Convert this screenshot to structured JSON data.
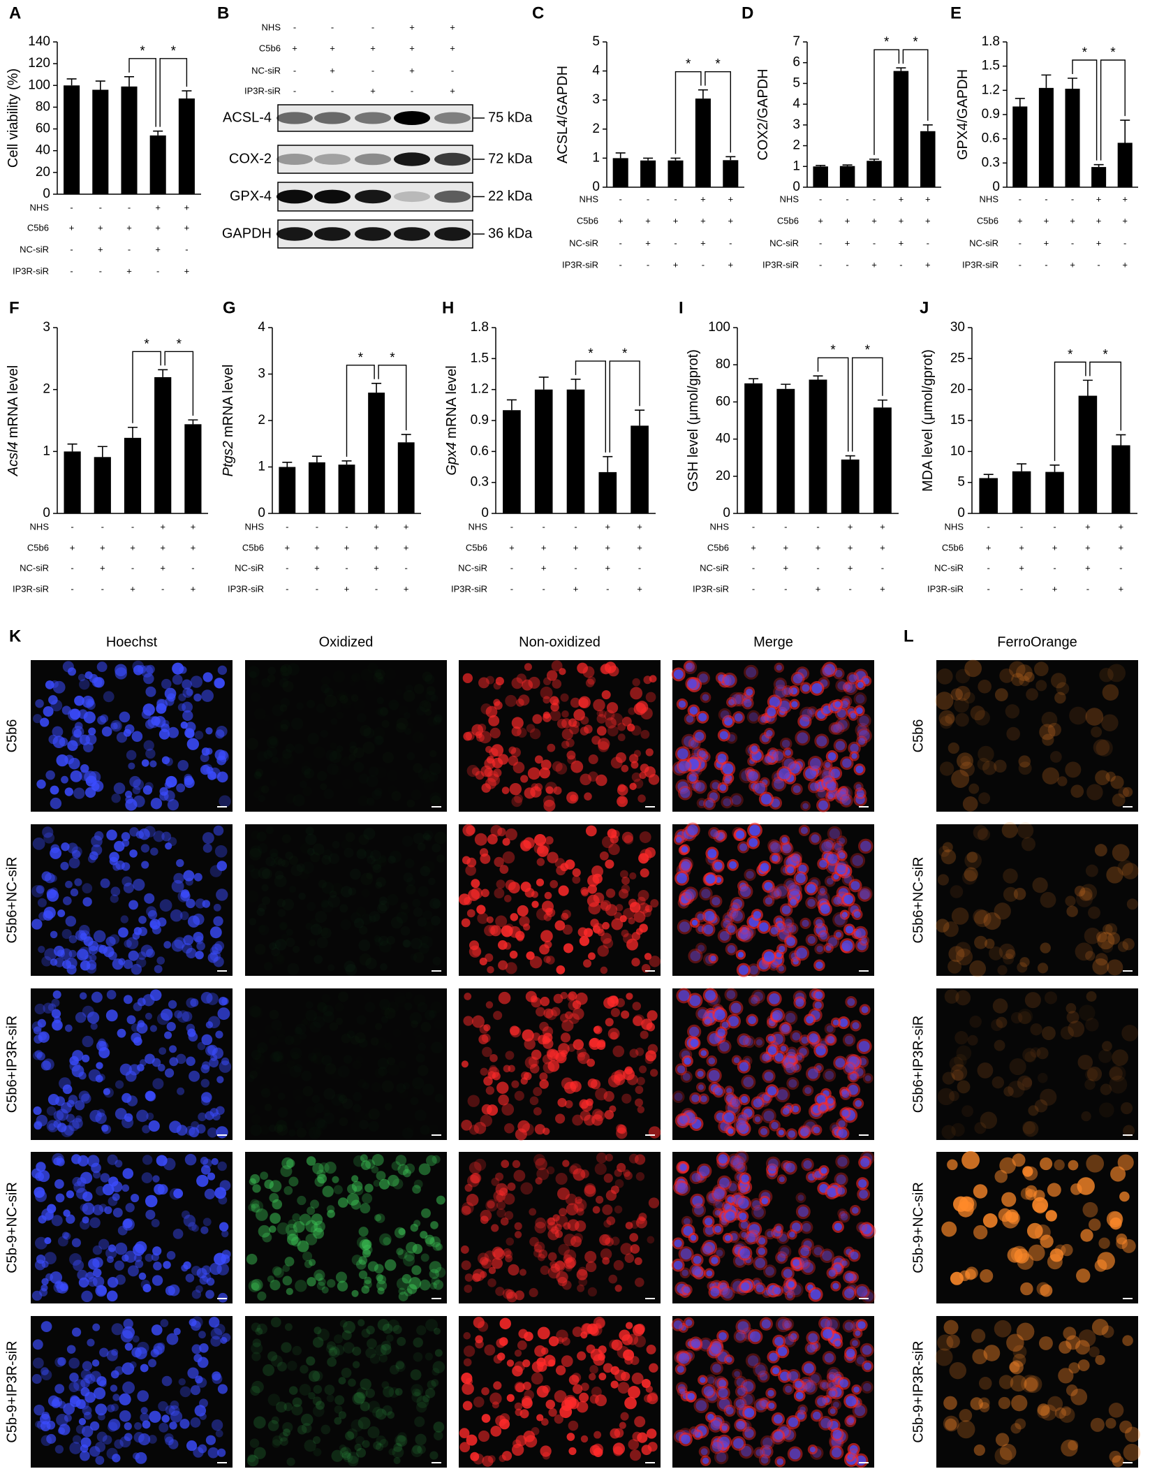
{
  "chart_data": [
    {
      "type": "bar",
      "panel": "A",
      "y_label": [
        {
          "text": "Cell viability (%)"
        }
      ],
      "values": [
        100,
        96,
        99,
        54,
        88
      ],
      "errors": [
        6,
        8,
        9,
        4,
        7
      ],
      "ylim": [
        0,
        140
      ],
      "yticks": [
        0,
        20,
        40,
        60,
        80,
        100,
        120,
        140
      ],
      "annotations": [
        "*",
        "*"
      ],
      "conditions": [
        {
          "name": "NHS",
          "signs": [
            "-",
            "-",
            "-",
            "+",
            "+"
          ]
        },
        {
          "name": "C5b6",
          "signs": [
            "+",
            "+",
            "+",
            "+",
            "+"
          ]
        },
        {
          "name": "NC-siR",
          "signs": [
            "-",
            "+",
            "-",
            "+",
            "-"
          ]
        },
        {
          "name": "IP3R-siR",
          "signs": [
            "-",
            "-",
            "+",
            "-",
            "+"
          ]
        }
      ]
    },
    {
      "type": "bar",
      "panel": "C",
      "y_label": [
        {
          "text": "ACSL4/GAPDH"
        }
      ],
      "values": [
        1.0,
        0.92,
        0.92,
        3.05,
        0.93
      ],
      "errors": [
        0.18,
        0.08,
        0.08,
        0.3,
        0.12
      ],
      "ylim": [
        0,
        5
      ],
      "yticks": [
        0,
        1,
        2,
        3,
        4,
        5
      ],
      "annotations": [
        "*",
        "*"
      ],
      "conditions": [
        {
          "name": "NHS",
          "signs": [
            "-",
            "-",
            "-",
            "+",
            "+"
          ]
        },
        {
          "name": "C5b6",
          "signs": [
            "+",
            "+",
            "+",
            "+",
            "+"
          ]
        },
        {
          "name": "NC-siR",
          "signs": [
            "-",
            "+",
            "-",
            "+",
            "-"
          ]
        },
        {
          "name": "IP3R-siR",
          "signs": [
            "-",
            "-",
            "+",
            "-",
            "+"
          ]
        }
      ]
    },
    {
      "type": "bar",
      "panel": "D",
      "y_label": [
        {
          "text": "COX2/GAPDH"
        }
      ],
      "values": [
        1.0,
        1.02,
        1.27,
        5.6,
        2.7
      ],
      "errors": [
        0.05,
        0.05,
        0.08,
        0.15,
        0.3
      ],
      "ylim": [
        0,
        7
      ],
      "yticks": [
        0,
        1,
        2,
        3,
        4,
        5,
        6,
        7
      ],
      "annotations": [
        "*",
        "*"
      ],
      "conditions": [
        {
          "name": "NHS",
          "signs": [
            "-",
            "-",
            "-",
            "+",
            "+"
          ]
        },
        {
          "name": "C5b6",
          "signs": [
            "+",
            "+",
            "+",
            "+",
            "+"
          ]
        },
        {
          "name": "NC-siR",
          "signs": [
            "-",
            "+",
            "-",
            "+",
            "-"
          ]
        },
        {
          "name": "IP3R-siR",
          "signs": [
            "-",
            "-",
            "+",
            "-",
            "+"
          ]
        }
      ]
    },
    {
      "type": "bar",
      "panel": "E",
      "y_label": [
        {
          "text": "GPX4/GAPDH"
        }
      ],
      "values": [
        1.0,
        1.23,
        1.22,
        0.25,
        0.55
      ],
      "errors": [
        0.1,
        0.16,
        0.13,
        0.03,
        0.28
      ],
      "ylim": [
        0,
        1.8
      ],
      "yticks": [
        0,
        0.3,
        0.6,
        0.9,
        1.2,
        1.5,
        1.8
      ],
      "annotations": [
        "*",
        "*"
      ],
      "conditions": [
        {
          "name": "NHS",
          "signs": [
            "-",
            "-",
            "-",
            "+",
            "+"
          ]
        },
        {
          "name": "C5b6",
          "signs": [
            "+",
            "+",
            "+",
            "+",
            "+"
          ]
        },
        {
          "name": "NC-siR",
          "signs": [
            "-",
            "+",
            "-",
            "+",
            "-"
          ]
        },
        {
          "name": "IP3R-siR",
          "signs": [
            "-",
            "-",
            "+",
            "-",
            "+"
          ]
        }
      ]
    },
    {
      "type": "bar",
      "panel": "F",
      "y_label": [
        {
          "text": "Acsl4",
          "italic": true
        },
        {
          "text": "mRNA level"
        }
      ],
      "values": [
        1.0,
        0.91,
        1.22,
        2.2,
        1.44
      ],
      "errors": [
        0.12,
        0.17,
        0.17,
        0.12,
        0.07
      ],
      "ylim": [
        0,
        3
      ],
      "yticks": [
        0,
        1,
        2,
        3
      ],
      "annotations": [
        "*",
        "*"
      ],
      "conditions": [
        {
          "name": "NHS",
          "signs": [
            "-",
            "-",
            "-",
            "+",
            "+"
          ]
        },
        {
          "name": "C5b6",
          "signs": [
            "+",
            "+",
            "+",
            "+",
            "+"
          ]
        },
        {
          "name": "NC-siR",
          "signs": [
            "-",
            "+",
            "-",
            "+",
            "-"
          ]
        },
        {
          "name": "IP3R-siR",
          "signs": [
            "-",
            "-",
            "+",
            "-",
            "+"
          ]
        }
      ]
    },
    {
      "type": "bar",
      "panel": "G",
      "y_label": [
        {
          "text": "Ptgs2",
          "italic": true
        },
        {
          "text": "mRNA level"
        }
      ],
      "values": [
        1.0,
        1.1,
        1.05,
        2.6,
        1.53
      ],
      "errors": [
        0.1,
        0.13,
        0.08,
        0.2,
        0.17
      ],
      "ylim": [
        0,
        4
      ],
      "yticks": [
        0,
        1,
        2,
        3,
        4
      ],
      "annotations": [
        "*",
        "*"
      ],
      "conditions": [
        {
          "name": "NHS",
          "signs": [
            "-",
            "-",
            "-",
            "+",
            "+"
          ]
        },
        {
          "name": "C5b6",
          "signs": [
            "+",
            "+",
            "+",
            "+",
            "+"
          ]
        },
        {
          "name": "NC-siR",
          "signs": [
            "-",
            "+",
            "-",
            "+",
            "-"
          ]
        },
        {
          "name": "IP3R-siR",
          "signs": [
            "-",
            "-",
            "+",
            "-",
            "+"
          ]
        }
      ]
    },
    {
      "type": "bar",
      "panel": "H",
      "y_label": [
        {
          "text": "Gpx4",
          "italic": true
        },
        {
          "text": "mRNA level"
        }
      ],
      "values": [
        1.0,
        1.2,
        1.2,
        0.4,
        0.85
      ],
      "errors": [
        0.1,
        0.12,
        0.1,
        0.15,
        0.15
      ],
      "ylim": [
        0,
        1.8
      ],
      "yticks": [
        0,
        0.3,
        0.6,
        0.9,
        1.2,
        1.5,
        1.8
      ],
      "annotations": [
        "*",
        "*"
      ],
      "conditions": [
        {
          "name": "NHS",
          "signs": [
            "-",
            "-",
            "-",
            "+",
            "+"
          ]
        },
        {
          "name": "C5b6",
          "signs": [
            "+",
            "+",
            "+",
            "+",
            "+"
          ]
        },
        {
          "name": "NC-siR",
          "signs": [
            "-",
            "+",
            "-",
            "+",
            "-"
          ]
        },
        {
          "name": "IP3R-siR",
          "signs": [
            "-",
            "-",
            "+",
            "-",
            "+"
          ]
        }
      ]
    },
    {
      "type": "bar",
      "panel": "I",
      "y_label": [
        {
          "text": "GSH level (μmol/gprot)"
        }
      ],
      "values": [
        70,
        67,
        72,
        29,
        57
      ],
      "errors": [
        2.5,
        2.5,
        2,
        2,
        4
      ],
      "ylim": [
        0,
        100
      ],
      "yticks": [
        0,
        20,
        40,
        60,
        80,
        100
      ],
      "annotations": [
        "*",
        "*"
      ],
      "conditions": [
        {
          "name": "NHS",
          "signs": [
            "-",
            "-",
            "-",
            "+",
            "+"
          ]
        },
        {
          "name": "C5b6",
          "signs": [
            "+",
            "+",
            "+",
            "+",
            "+"
          ]
        },
        {
          "name": "NC-siR",
          "signs": [
            "-",
            "+",
            "-",
            "+",
            "-"
          ]
        },
        {
          "name": "IP3R-siR",
          "signs": [
            "-",
            "-",
            "+",
            "-",
            "+"
          ]
        }
      ]
    },
    {
      "type": "bar",
      "panel": "J",
      "y_label": [
        {
          "text": "MDA level (μmol/gprot)"
        }
      ],
      "values": [
        5.7,
        6.8,
        6.7,
        19,
        11
      ],
      "errors": [
        0.6,
        1.2,
        1.1,
        2.5,
        1.7
      ],
      "ylim": [
        0,
        30
      ],
      "yticks": [
        0,
        5,
        10,
        15,
        20,
        25,
        30
      ],
      "annotations": [
        "*",
        "*"
      ],
      "conditions": [
        {
          "name": "NHS",
          "signs": [
            "-",
            "-",
            "-",
            "+",
            "+"
          ]
        },
        {
          "name": "C5b6",
          "signs": [
            "+",
            "+",
            "+",
            "+",
            "+"
          ]
        },
        {
          "name": "NC-siR",
          "signs": [
            "-",
            "+",
            "-",
            "+",
            "-"
          ]
        },
        {
          "name": "IP3R-siR",
          "signs": [
            "-",
            "-",
            "+",
            "-",
            "+"
          ]
        }
      ]
    }
  ],
  "blot": {
    "panel": "B",
    "conditions": [
      {
        "name": "NHS",
        "signs": [
          "-",
          "-",
          "-",
          "+",
          "+"
        ]
      },
      {
        "name": "C5b6",
        "signs": [
          "+",
          "+",
          "+",
          "+",
          "+"
        ]
      },
      {
        "name": "NC-siR",
        "signs": [
          "-",
          "+",
          "-",
          "+",
          "-"
        ]
      },
      {
        "name": "IP3R-siR",
        "signs": [
          "-",
          "-",
          "+",
          "-",
          "+"
        ]
      }
    ],
    "bands": [
      {
        "name": "ACSL-4",
        "size": "75 kDa"
      },
      {
        "name": "COX-2",
        "size": "72 kDa"
      },
      {
        "name": "GPX-4",
        "size": "22 kDa"
      },
      {
        "name": "GAPDH",
        "size": "36 kDa"
      }
    ]
  },
  "imaging": {
    "panel": "K",
    "channels": [
      {
        "name": "Hoechst",
        "color": "#2a3ad0"
      },
      {
        "name": "Oxidized",
        "color": "#2e8b3a"
      },
      {
        "name": "Non-oxidized",
        "color": "#c8102e"
      },
      {
        "name": "Merge",
        "color": "#000000"
      }
    ],
    "groups": [
      "C5b6",
      "C5b6+NC-siR",
      "C5b6+IP3R-siR",
      "C5b-9+NC-siR",
      "C5b-9+IP3R-siR"
    ]
  },
  "ferro": {
    "panel": "L",
    "channel": {
      "name": "FerroOrange",
      "color": "#e8701a"
    },
    "groups": [
      "C5b6",
      "C5b6+NC-siR",
      "C5b6+IP3R-siR",
      "C5b-9+NC-siR",
      "C5b-9+IP3R-siR"
    ]
  }
}
